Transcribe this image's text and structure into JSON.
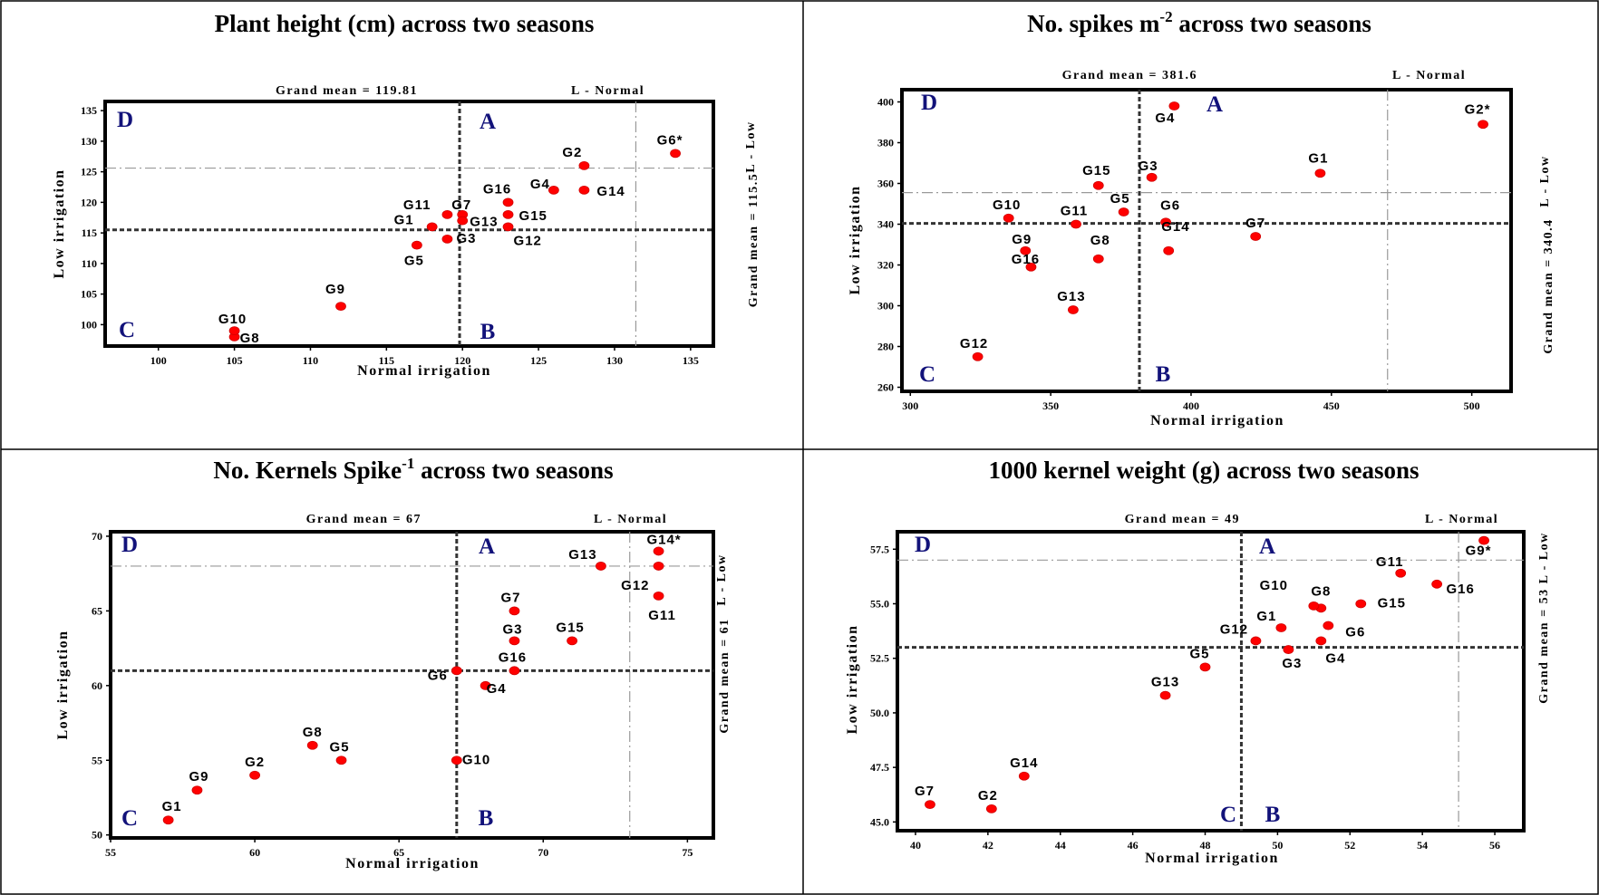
{
  "panels": [
    {
      "title": "Plant height (cm) across two seasons",
      "grand_mean_x_label": "Grand mean = 119.81",
      "grand_mean_y_label": "Grand mean = 115.5",
      "l_normal_label": "L - Normal",
      "l_low_label": "L - Low",
      "quadrants": {
        "A": "A",
        "B": "B",
        "C": "C",
        "D": "D"
      },
      "chart_data": {
        "type": "scatter",
        "xlabel": "Normal irrigation",
        "ylabel": "Low irrigation",
        "xlim": [
          96.5,
          136.5
        ],
        "ylim": [
          96.5,
          136.5
        ],
        "xticks": [
          100,
          105,
          110,
          115,
          120,
          125,
          130,
          135
        ],
        "yticks": [
          100,
          105,
          110,
          115,
          120,
          125,
          130,
          135
        ],
        "grand_mean_x": 119.81,
        "grand_mean_y": 115.5,
        "l_normal": 131.4,
        "l_low": 125.6,
        "points": [
          {
            "label": "G1",
            "x": 118,
            "y": 116
          },
          {
            "label": "G2",
            "x": 128,
            "y": 126
          },
          {
            "label": "G3",
            "x": 119,
            "y": 114
          },
          {
            "label": "G4",
            "x": 126,
            "y": 122
          },
          {
            "label": "G5",
            "x": 117,
            "y": 113
          },
          {
            "label": "G6*",
            "x": 134,
            "y": 128
          },
          {
            "label": "G7",
            "x": 120,
            "y": 118
          },
          {
            "label": "G8",
            "x": 105,
            "y": 98
          },
          {
            "label": "G9",
            "x": 112,
            "y": 103
          },
          {
            "label": "G10",
            "x": 105,
            "y": 99
          },
          {
            "label": "G11",
            "x": 119,
            "y": 118
          },
          {
            "label": "G12",
            "x": 123,
            "y": 116
          },
          {
            "label": "G13",
            "x": 120,
            "y": 117
          },
          {
            "label": "G14",
            "x": 128,
            "y": 122
          },
          {
            "label": "G15",
            "x": 123,
            "y": 118
          },
          {
            "label": "G16",
            "x": 123,
            "y": 120
          }
        ]
      }
    },
    {
      "title_prefix": "No. spikes m",
      "title_sup": "-2",
      "title_suffix": " across two seasons",
      "grand_mean_x_label": "Grand mean = 381.6",
      "grand_mean_y_label": "Grand mean = 340.4",
      "l_normal_label": "L - Normal",
      "l_low_label": "L - Low",
      "quadrants": {
        "A": "A",
        "B": "B",
        "C": "C",
        "D": "D"
      },
      "chart_data": {
        "type": "scatter",
        "xlabel": "Normal irrigation",
        "ylabel": "Low irrigation",
        "xlim": [
          297,
          514
        ],
        "ylim": [
          258,
          406
        ],
        "xticks": [
          300,
          350,
          400,
          450,
          500
        ],
        "yticks": [
          260,
          280,
          300,
          320,
          340,
          360,
          380,
          400
        ],
        "grand_mean_x": 381.6,
        "grand_mean_y": 340.4,
        "l_normal": 470,
        "l_low": 355.5,
        "points": [
          {
            "label": "G1",
            "x": 446,
            "y": 365
          },
          {
            "label": "G2*",
            "x": 504,
            "y": 389
          },
          {
            "label": "G3",
            "x": 386,
            "y": 363
          },
          {
            "label": "G4",
            "x": 394,
            "y": 398
          },
          {
            "label": "G5",
            "x": 376,
            "y": 346
          },
          {
            "label": "G6",
            "x": 391,
            "y": 341
          },
          {
            "label": "G7",
            "x": 423,
            "y": 334
          },
          {
            "label": "G8",
            "x": 367,
            "y": 323
          },
          {
            "label": "G9",
            "x": 341,
            "y": 327
          },
          {
            "label": "G10",
            "x": 335,
            "y": 343
          },
          {
            "label": "G11",
            "x": 359,
            "y": 340
          },
          {
            "label": "G12",
            "x": 324,
            "y": 275
          },
          {
            "label": "G13",
            "x": 358,
            "y": 298
          },
          {
            "label": "G14",
            "x": 392,
            "y": 327
          },
          {
            "label": "G15",
            "x": 367,
            "y": 359
          },
          {
            "label": "G16",
            "x": 343,
            "y": 319
          }
        ]
      }
    },
    {
      "title_prefix": "No. Kernels Spike",
      "title_sup": "-1",
      "title_suffix": " across two seasons",
      "grand_mean_x_label": "Grand mean = 67",
      "grand_mean_y_label": "Grand mean = 61",
      "l_normal_label": "L - Normal",
      "l_low_label": "L - Low",
      "quadrants": {
        "A": "A",
        "B": "B",
        "C": "C",
        "D": "D"
      },
      "chart_data": {
        "type": "scatter",
        "xlabel": "Normal irrigation",
        "ylabel": "Low irrigation",
        "xlim": [
          55,
          75.9
        ],
        "ylim": [
          49.8,
          70.3
        ],
        "xticks": [
          55,
          60,
          65,
          70,
          75
        ],
        "yticks": [
          50,
          55,
          60,
          65,
          70
        ],
        "grand_mean_x": 67,
        "grand_mean_y": 61,
        "l_normal": 73,
        "l_low": 68,
        "points": [
          {
            "label": "G1",
            "x": 57,
            "y": 51
          },
          {
            "label": "G2",
            "x": 60,
            "y": 54
          },
          {
            "label": "G3",
            "x": 69,
            "y": 63
          },
          {
            "label": "G4",
            "x": 68,
            "y": 60
          },
          {
            "label": "G5",
            "x": 63,
            "y": 55
          },
          {
            "label": "G6",
            "x": 67,
            "y": 61
          },
          {
            "label": "G7",
            "x": 69,
            "y": 65
          },
          {
            "label": "G8",
            "x": 62,
            "y": 56
          },
          {
            "label": "G9",
            "x": 58,
            "y": 53
          },
          {
            "label": "G10",
            "x": 67,
            "y": 55
          },
          {
            "label": "G11",
            "x": 74,
            "y": 66
          },
          {
            "label": "G12",
            "x": 74,
            "y": 68
          },
          {
            "label": "G13",
            "x": 72,
            "y": 68
          },
          {
            "label": "G14*",
            "x": 74,
            "y": 69
          },
          {
            "label": "G15",
            "x": 71,
            "y": 63
          },
          {
            "label": "G16",
            "x": 69,
            "y": 61
          }
        ]
      }
    },
    {
      "title": "1000 kernel weight  (g) across two seasons",
      "grand_mean_x_label": "Grand mean = 49",
      "grand_mean_y_label": "Grand mean = 53 L - Low",
      "l_normal_label": "L - Normal",
      "quadrants": {
        "A": "A",
        "B": "B",
        "C": "C",
        "D": "D"
      },
      "chart_data": {
        "type": "scatter",
        "xlabel": "Normal irrigation",
        "ylabel": "Low irrigation",
        "xlim": [
          39.5,
          56.8
        ],
        "ylim": [
          44.6,
          58.3
        ],
        "xticks": [
          40,
          42,
          44,
          46,
          48,
          50,
          52,
          54,
          56
        ],
        "yticks": [
          45.0,
          47.5,
          50.0,
          52.5,
          55.0,
          57.5
        ],
        "ytick_labels": [
          "45.0",
          "47.5",
          "50.0",
          "52.5",
          "55.0",
          "57.5"
        ],
        "grand_mean_x": 49,
        "grand_mean_y": 53,
        "l_normal": 55,
        "l_low": 57,
        "points": [
          {
            "label": "G1",
            "x": 50.1,
            "y": 53.9
          },
          {
            "label": "G2",
            "x": 42.1,
            "y": 45.6
          },
          {
            "label": "G3",
            "x": 50.3,
            "y": 52.9
          },
          {
            "label": "G4",
            "x": 51.2,
            "y": 53.3
          },
          {
            "label": "G5",
            "x": 48.0,
            "y": 52.1
          },
          {
            "label": "G6",
            "x": 51.4,
            "y": 54.0
          },
          {
            "label": "G7",
            "x": 40.4,
            "y": 45.8
          },
          {
            "label": "G8",
            "x": 51.2,
            "y": 54.8
          },
          {
            "label": "G9*",
            "x": 55.7,
            "y": 57.9
          },
          {
            "label": "G10",
            "x": 51.0,
            "y": 54.9
          },
          {
            "label": "G11",
            "x": 53.4,
            "y": 56.4
          },
          {
            "label": "G12",
            "x": 49.4,
            "y": 53.3
          },
          {
            "label": "G13",
            "x": 46.9,
            "y": 50.8
          },
          {
            "label": "G14",
            "x": 43.0,
            "y": 47.1
          },
          {
            "label": "G15",
            "x": 52.3,
            "y": 55.0
          },
          {
            "label": "G16",
            "x": 54.4,
            "y": 55.9
          }
        ]
      }
    }
  ]
}
